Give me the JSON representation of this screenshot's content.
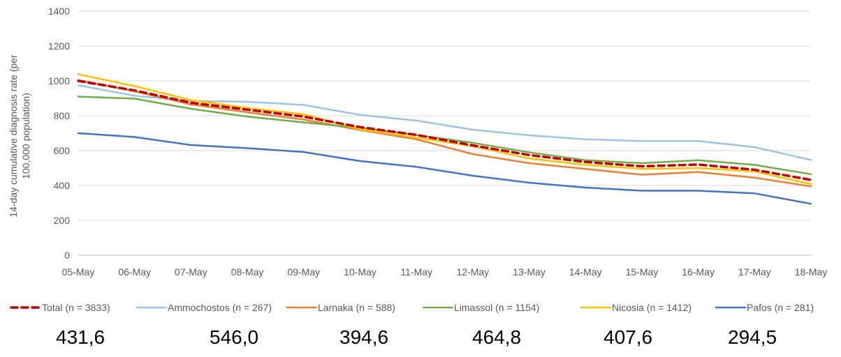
{
  "chart_data": {
    "type": "line",
    "ylabel": "14-day cumulative diagnosis rate (per 100,000 population)",
    "ylim": [
      0,
      1400
    ],
    "yticks": [
      0,
      200,
      400,
      600,
      800,
      1000,
      1200,
      1400
    ],
    "categories": [
      "05-May",
      "06-May",
      "07-May",
      "08-May",
      "09-May",
      "10-May",
      "11-May",
      "12-May",
      "13-May",
      "14-May",
      "15-May",
      "16-May",
      "17-May",
      "18-May"
    ],
    "grid": true,
    "legend_position": "bottom",
    "series": [
      {
        "name": "Total (n = 3833)",
        "color": "#C00000",
        "dashed": true,
        "values": [
          1000,
          945,
          875,
          835,
          795,
          735,
          690,
          630,
          575,
          535,
          510,
          520,
          490,
          432
        ]
      },
      {
        "name": "Ammochostos (n = 267)",
        "color": "#9DC3E6",
        "dashed": false,
        "values": [
          975,
          915,
          885,
          880,
          862,
          805,
          772,
          720,
          688,
          665,
          655,
          655,
          620,
          546
        ]
      },
      {
        "name": "Larnaka (n = 588)",
        "color": "#ED7D31",
        "dashed": false,
        "values": [
          1005,
          940,
          865,
          820,
          778,
          718,
          665,
          580,
          528,
          495,
          462,
          477,
          445,
          395
        ]
      },
      {
        "name": "Limassol (n = 1154)",
        "color": "#70AD47",
        "dashed": false,
        "values": [
          910,
          898,
          840,
          795,
          762,
          730,
          690,
          645,
          590,
          545,
          528,
          545,
          518,
          465
        ]
      },
      {
        "name": "Nicosia (n = 1412)",
        "color": "#FFC000",
        "dashed": false,
        "values": [
          1038,
          970,
          890,
          845,
          808,
          722,
          675,
          625,
          555,
          518,
          495,
          500,
          480,
          408
        ]
      },
      {
        "name": "Pafos (n = 281)",
        "color": "#4472C4",
        "dashed": false,
        "values": [
          700,
          678,
          632,
          614,
          592,
          540,
          507,
          456,
          416,
          388,
          370,
          370,
          355,
          295
        ]
      }
    ]
  },
  "summary_values": [
    "431,6",
    "546,0",
    "394,6",
    "464,8",
    "407,6",
    "294,5"
  ]
}
